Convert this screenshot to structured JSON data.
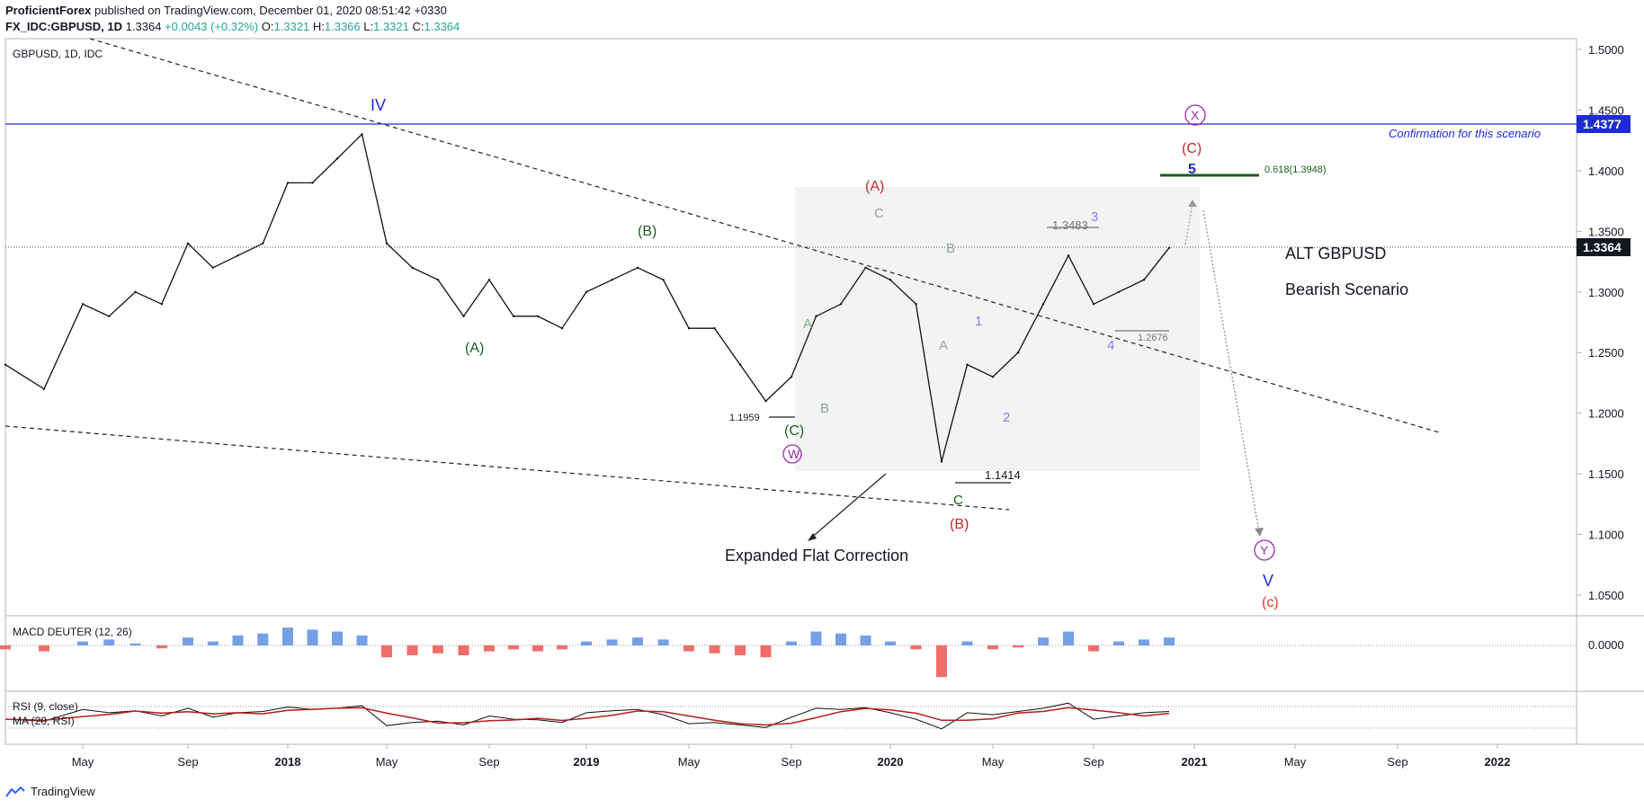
{
  "header": {
    "author": "ProficientForex",
    "published": "published on TradingView.com, December 01, 2020 08:51:42 +0330",
    "symbol": "FX_IDC:GBPUSD, 1D",
    "last": "1.3364",
    "change": "+0.0043 (+0.32%)",
    "o_label": "O:",
    "o": "1.3321",
    "h_label": "H:",
    "h": "1.3366",
    "l_label": "L:",
    "l": "1.3321",
    "c_label": "C:",
    "c": "1.3364"
  },
  "footer": {
    "brand": "TradingView"
  },
  "chart_data": {
    "type": "line",
    "title": "GBPUSD, 1D, IDC",
    "subtitle_lines": [
      "ALT  GBPUSD",
      "Bearish Scenario"
    ],
    "ylim": [
      1.025,
      1.51
    ],
    "y_ticks": [
      "1.5000",
      "1.4500",
      "1.4000",
      "1.3500",
      "1.3000",
      "1.2500",
      "1.2000",
      "1.1500",
      "1.1000",
      "1.0500"
    ],
    "x_ticks": [
      "May",
      "Sep",
      "2018",
      "May",
      "Sep",
      "2019",
      "May",
      "Sep",
      "2020",
      "May",
      "Sep",
      "2021",
      "May",
      "Sep",
      "2022"
    ],
    "price_badges": [
      {
        "value": "1.4377",
        "color": "#1e2bd6"
      },
      {
        "value": "1.3364",
        "color": "#131722"
      }
    ],
    "series": [
      {
        "name": "GBPUSD",
        "x_dates": [
          "2017-03",
          "2017-04",
          "2017-05",
          "2017-06",
          "2017-07",
          "2017-08",
          "2017-09",
          "2017-10",
          "2017-11",
          "2017-12",
          "2018-01",
          "2018-02",
          "2018-03",
          "2018-04",
          "2018-05",
          "2018-06",
          "2018-07",
          "2018-08",
          "2018-09",
          "2018-10",
          "2018-11",
          "2018-12",
          "2019-01",
          "2019-02",
          "2019-03",
          "2019-04",
          "2019-05",
          "2019-06",
          "2019-07",
          "2019-08",
          "2019-09",
          "2019-10",
          "2019-11",
          "2019-12",
          "2020-01",
          "2020-02",
          "2020-03",
          "2020-04",
          "2020-05",
          "2020-06",
          "2020-07",
          "2020-08",
          "2020-09",
          "2020-10",
          "2020-11",
          "2020-12"
        ],
        "values": [
          1.24,
          1.22,
          1.29,
          1.28,
          1.3,
          1.29,
          1.34,
          1.32,
          1.33,
          1.34,
          1.39,
          1.39,
          1.41,
          1.43,
          1.34,
          1.32,
          1.31,
          1.28,
          1.31,
          1.28,
          1.28,
          1.27,
          1.3,
          1.31,
          1.32,
          1.31,
          1.27,
          1.27,
          1.24,
          1.21,
          1.23,
          1.28,
          1.29,
          1.32,
          1.31,
          1.29,
          1.16,
          1.24,
          1.23,
          1.25,
          1.29,
          1.33,
          1.29,
          1.3,
          1.31,
          1.3364
        ]
      }
    ],
    "annotations": {
      "IV": "IV",
      "A_paren1": "(A)",
      "B_paren1": "(B)",
      "C_paren1": "(C)",
      "W": "W",
      "A_red": "(A)",
      "B_red": "(B)",
      "C_red": "(C)",
      "X": "X",
      "Y": "Y",
      "A_g": "A",
      "B_g": "B",
      "C_g": "C",
      "A_g2": "A",
      "B_g2": "B",
      "C_g2": "C",
      "w1": "1",
      "w2": "2",
      "w3": "3",
      "w4": "4",
      "w5": "5",
      "V": "V",
      "c_small": "(c)",
      "p_1959": "1.1959",
      "p_1414": "1.1414",
      "p_3483": "1.3483",
      "p_2676": "1.2676",
      "fib": "0.618(1.3948)",
      "confirmation": "Confirmation for this scenario",
      "expanded": "Expanded Flat Correction"
    },
    "macd": {
      "label": "MACD DEUTER (12, 26)",
      "y_tick": "0.0000",
      "values": [
        -0.004,
        -0.006,
        0.004,
        0.006,
        0.002,
        -0.003,
        0.008,
        0.004,
        0.01,
        0.012,
        0.018,
        0.016,
        0.014,
        0.01,
        -0.012,
        -0.01,
        -0.008,
        -0.01,
        -0.006,
        -0.004,
        -0.006,
        -0.004,
        0.004,
        0.006,
        0.008,
        0.006,
        -0.006,
        -0.008,
        -0.01,
        -0.012,
        0.004,
        0.014,
        0.012,
        0.01,
        0.004,
        -0.004,
        -0.032,
        0.004,
        -0.004,
        -0.002,
        0.008,
        0.014,
        -0.006,
        0.004,
        0.006,
        0.008
      ]
    },
    "rsi": {
      "label": "RSI (9, close)",
      "ma_label": "MA (20, RSI)",
      "values": [
        45,
        42,
        60,
        55,
        58,
        50,
        62,
        48,
        55,
        57,
        64,
        60,
        62,
        66,
        35,
        40,
        42,
        36,
        50,
        45,
        44,
        40,
        55,
        58,
        60,
        52,
        38,
        40,
        36,
        32,
        48,
        62,
        60,
        63,
        55,
        45,
        30,
        55,
        52,
        57,
        62,
        70,
        45,
        50,
        55,
        57
      ]
    }
  }
}
